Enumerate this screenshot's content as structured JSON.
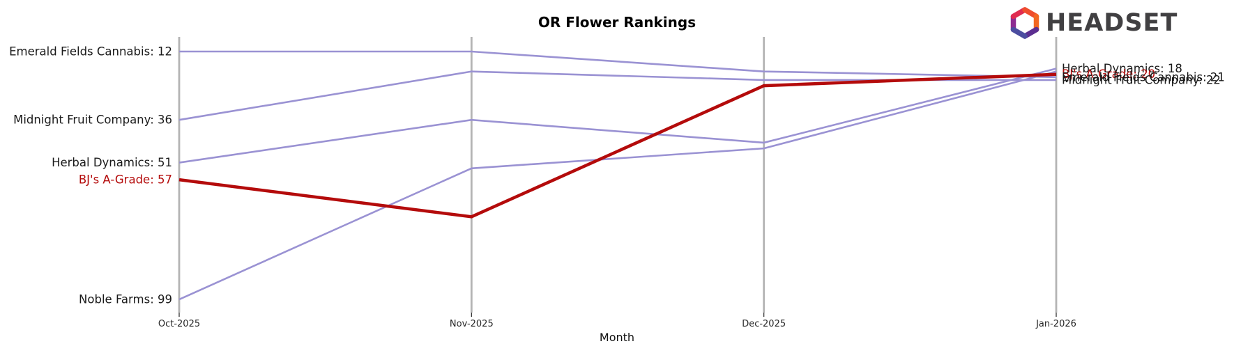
{
  "header": {
    "title": "OR Flower Rankings",
    "logo_brand": "HEADSET"
  },
  "chart_data": {
    "type": "line",
    "title": "OR Flower Rankings",
    "xlabel": "Month",
    "x": [
      "Oct-2025",
      "Nov-2025",
      "Dec-2025",
      "Jan-2026"
    ],
    "y_axis": {
      "metric": "rank",
      "inverted": true,
      "range": [
        12,
        99
      ],
      "gridlines": false,
      "y_tick_labels": "none (ranks shown as line labels)"
    },
    "series": [
      {
        "name": "Emerald Fields Cannabis",
        "values": [
          12,
          12,
          19,
          21
        ],
        "highlight": false
      },
      {
        "name": "Midnight Fruit Company",
        "values": [
          36,
          19,
          22,
          22
        ],
        "highlight": false
      },
      {
        "name": "Herbal Dynamics",
        "values": [
          51,
          36,
          44,
          18
        ],
        "highlight": false
      },
      {
        "name": "BJ's A-Grade",
        "values": [
          57,
          70,
          24,
          20
        ],
        "highlight": true
      },
      {
        "name": "Noble Farms",
        "values": [
          99,
          53,
          46,
          19
        ],
        "highlight": false
      }
    ],
    "left_labels": [
      "Emerald Fields Cannabis: 12",
      "Midnight Fruit Company: 36",
      "Herbal Dynamics: 51",
      "BJ's A-Grade: 57",
      "Noble Farms: 99"
    ],
    "right_labels": [
      "Herbal Dynamics: 18",
      "BJ's A-Grade: 20",
      "Emerald Fields Cannabis: 21",
      "Midnight Fruit Company: 22"
    ],
    "legend_position": "none",
    "colors": {
      "series_default": "#9a92d3",
      "series_highlight": "#b40b0b",
      "axis_line": "#b4b4b4",
      "tick_text": "#262626",
      "label_text": "#1a1a1a"
    }
  }
}
